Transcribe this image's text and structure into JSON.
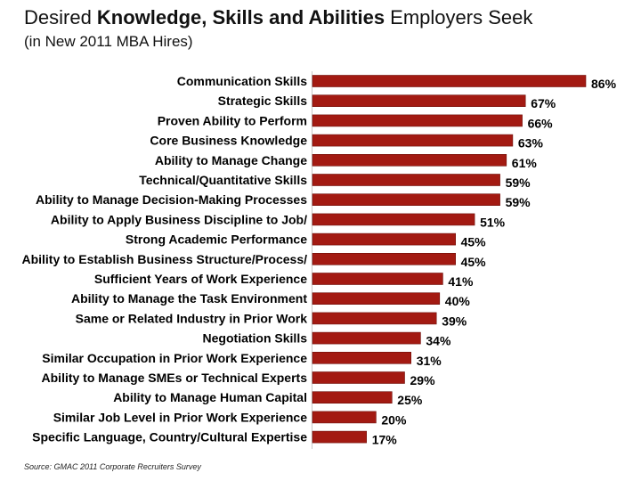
{
  "title": {
    "prefix": "Desired ",
    "emphasis": "Knowledge, Skills and Abilities",
    "suffix": " Employers Seek"
  },
  "subtitle": "(in New 2011 MBA Hires)",
  "source": "Source:  GMAC 2011 Corporate Recruiters Survey",
  "chart_data": {
    "type": "bar",
    "orientation": "horizontal",
    "categories": [
      "Communication Skills",
      "Strategic Skills",
      "Proven Ability to Perform",
      "Core Business Knowledge",
      "Ability to Manage Change",
      "Technical/Quantitative Skills",
      "Ability to Manage Decision-Making Processes",
      "Ability to Apply Business Discipline to Job/",
      "Strong Academic Performance",
      "Ability to Establish Business Structure/Process/",
      "Sufficient Years of Work Experience",
      "Ability to Manage the Task Environment",
      "Same or Related Industry in Prior Work",
      "Negotiation Skills",
      "Similar Occupation in Prior Work Experience",
      "Ability to Manage SMEs or Technical Experts",
      "Ability to Manage Human Capital",
      "Similar Job Level in Prior Work Experience",
      "Specific Language, Country/Cultural Expertise"
    ],
    "values": [
      86,
      67,
      66,
      63,
      61,
      59,
      59,
      51,
      45,
      45,
      41,
      40,
      39,
      34,
      31,
      29,
      25,
      20,
      17
    ],
    "value_labels": [
      "86%",
      "67%",
      "66%",
      "63%",
      "61%",
      "59%",
      "59%",
      "51%",
      "45%",
      "45%",
      "41%",
      "40%",
      "39%",
      "34%",
      "31%",
      "29%",
      "25%",
      "20%",
      "17%"
    ],
    "unit": "%",
    "xlim": [
      0,
      100
    ],
    "grid": false,
    "legend": "none",
    "bar_color": "#a31a12",
    "bar_edge_color": "#6e0f0a"
  }
}
